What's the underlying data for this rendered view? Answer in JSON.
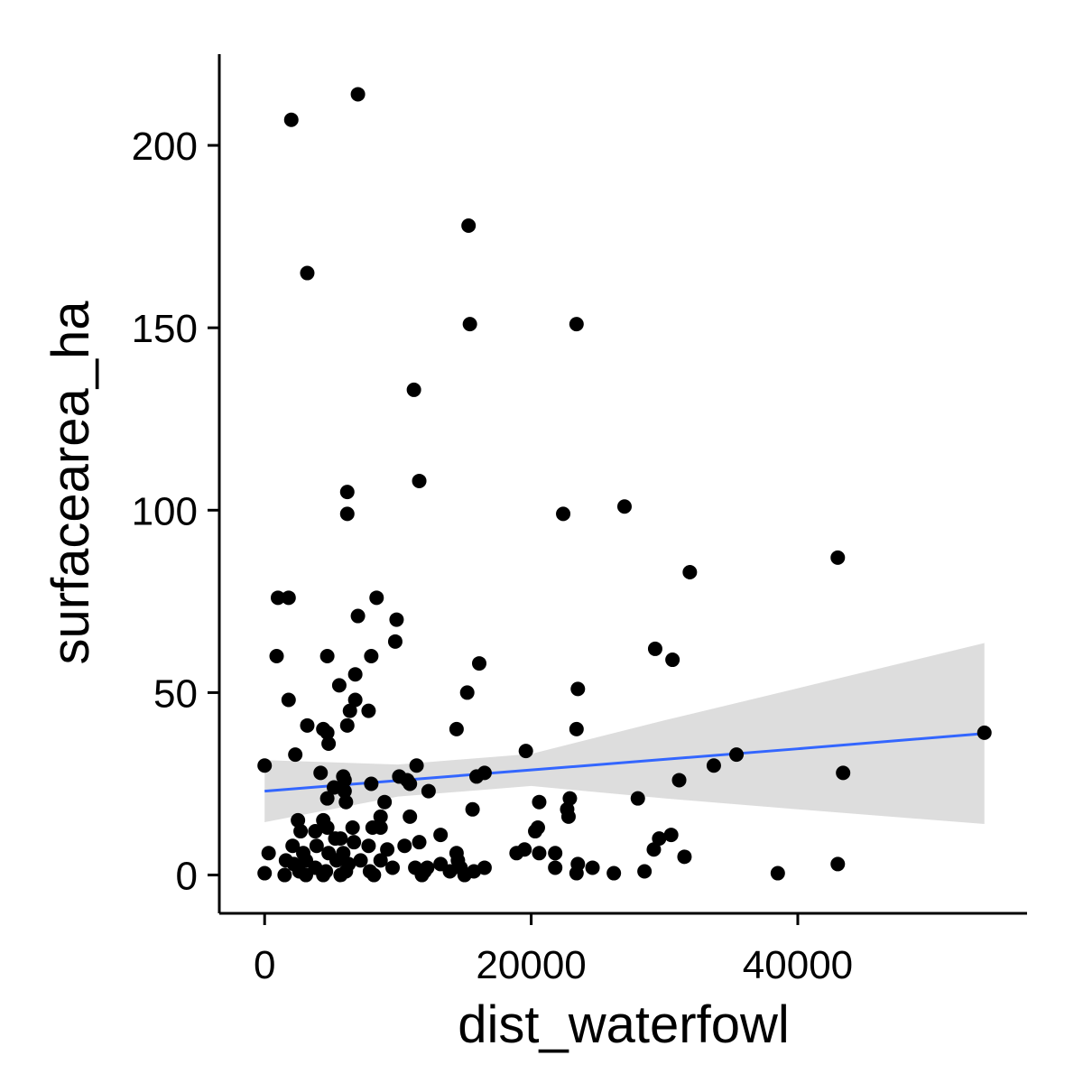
{
  "chart_data": {
    "type": "scatter",
    "xlabel": "dist_waterfowl",
    "ylabel": "surfacearea_ha",
    "xlim": [
      -3400,
      57200
    ],
    "ylim": [
      -10.5,
      225
    ],
    "x_ticks": [
      0,
      20000,
      40000
    ],
    "x_tick_labels": [
      "0",
      "20000",
      "40000"
    ],
    "y_ticks": [
      0,
      50,
      100,
      150,
      200
    ],
    "y_tick_labels": [
      "0",
      "50",
      "100",
      "150",
      "200"
    ],
    "grid": false,
    "legend": "none",
    "point_color": "#000000",
    "smooth": {
      "method": "linear",
      "line_color": "#3366FF",
      "band_color": "#D9D9D9",
      "x": [
        0,
        10000,
        20000,
        30000,
        40000,
        54000
      ],
      "fit": [
        23.0,
        25.9,
        28.8,
        31.7,
        34.6,
        38.8
      ],
      "lower": [
        14.5,
        21.5,
        24.4,
        21.0,
        18.0,
        14.0
      ],
      "upper": [
        31.5,
        30.3,
        33.2,
        42.4,
        51.2,
        63.6
      ]
    },
    "points": [
      [
        7000,
        214
      ],
      [
        2000,
        207
      ],
      [
        15300,
        178
      ],
      [
        3200,
        165
      ],
      [
        15400,
        151
      ],
      [
        23400,
        151
      ],
      [
        11200,
        133
      ],
      [
        11600,
        108
      ],
      [
        6200,
        105
      ],
      [
        6200,
        99
      ],
      [
        22400,
        99
      ],
      [
        27000,
        101
      ],
      [
        43000,
        87
      ],
      [
        31900,
        83
      ],
      [
        1000,
        76
      ],
      [
        1800,
        76
      ],
      [
        8400,
        76
      ],
      [
        7000,
        71
      ],
      [
        9900,
        70
      ],
      [
        9800,
        64
      ],
      [
        29300,
        62
      ],
      [
        30600,
        59
      ],
      [
        900,
        60
      ],
      [
        4700,
        60
      ],
      [
        8000,
        60
      ],
      [
        16100,
        58
      ],
      [
        6800,
        55
      ],
      [
        5600,
        52
      ],
      [
        15200,
        50
      ],
      [
        23500,
        51
      ],
      [
        1800,
        48
      ],
      [
        6800,
        48
      ],
      [
        6400,
        45
      ],
      [
        7800,
        45
      ],
      [
        3200,
        41
      ],
      [
        6200,
        41
      ],
      [
        14400,
        40
      ],
      [
        23400,
        40
      ],
      [
        4400,
        40
      ],
      [
        4700,
        39
      ],
      [
        54000,
        39
      ],
      [
        4800,
        36
      ],
      [
        2300,
        33
      ],
      [
        35400,
        33
      ],
      [
        19600,
        34
      ],
      [
        0,
        30
      ],
      [
        33700,
        30
      ],
      [
        11400,
        30
      ],
      [
        43400,
        28
      ],
      [
        4200,
        28
      ],
      [
        5900,
        27
      ],
      [
        6000,
        26
      ],
      [
        10100,
        27
      ],
      [
        10700,
        26
      ],
      [
        16500,
        28
      ],
      [
        15900,
        27
      ],
      [
        31100,
        26
      ],
      [
        10900,
        25
      ],
      [
        12300,
        23
      ],
      [
        8000,
        25
      ],
      [
        5200,
        24
      ],
      [
        6000,
        23
      ],
      [
        6100,
        20
      ],
      [
        4700,
        21
      ],
      [
        22900,
        21
      ],
      [
        28000,
        21
      ],
      [
        20600,
        20
      ],
      [
        9000,
        20
      ],
      [
        15600,
        18
      ],
      [
        22700,
        18
      ],
      [
        22800,
        16
      ],
      [
        8700,
        16
      ],
      [
        10900,
        16
      ],
      [
        2500,
        15
      ],
      [
        4400,
        15
      ],
      [
        4700,
        13
      ],
      [
        6600,
        13
      ],
      [
        8100,
        13
      ],
      [
        8700,
        13
      ],
      [
        3800,
        12
      ],
      [
        2700,
        12
      ],
      [
        20300,
        12
      ],
      [
        20500,
        13
      ],
      [
        13200,
        11
      ],
      [
        30500,
        11
      ],
      [
        5300,
        10
      ],
      [
        5700,
        10
      ],
      [
        6700,
        9
      ],
      [
        29600,
        10
      ],
      [
        10500,
        8
      ],
      [
        11600,
        9
      ],
      [
        3900,
        8
      ],
      [
        2100,
        8
      ],
      [
        5900,
        6
      ],
      [
        7800,
        8
      ],
      [
        9200,
        7
      ],
      [
        19500,
        7
      ],
      [
        20600,
        6
      ],
      [
        29200,
        7
      ],
      [
        14400,
        6
      ],
      [
        18900,
        6
      ],
      [
        21800,
        6
      ],
      [
        31500,
        5
      ],
      [
        300,
        6
      ],
      [
        2900,
        6
      ],
      [
        4800,
        6
      ],
      [
        1600,
        4
      ],
      [
        3100,
        4
      ],
      [
        5400,
        4
      ],
      [
        7200,
        4
      ],
      [
        8700,
        4
      ],
      [
        13200,
        3
      ],
      [
        14500,
        4
      ],
      [
        23500,
        3
      ],
      [
        43000,
        3
      ],
      [
        2200,
        3
      ],
      [
        3800,
        2
      ],
      [
        6300,
        3
      ],
      [
        9600,
        2
      ],
      [
        11300,
        2
      ],
      [
        12200,
        2
      ],
      [
        14700,
        2
      ],
      [
        16500,
        2
      ],
      [
        21800,
        2
      ],
      [
        24600,
        2
      ],
      [
        28500,
        1
      ],
      [
        2600,
        1
      ],
      [
        4600,
        1
      ],
      [
        6100,
        1
      ],
      [
        7900,
        1
      ],
      [
        12000,
        1
      ],
      [
        13900,
        1
      ],
      [
        15700,
        1
      ],
      [
        23400,
        0.5
      ],
      [
        26200,
        0.5
      ],
      [
        38500,
        0.5
      ],
      [
        0,
        0.5
      ],
      [
        1500,
        0
      ],
      [
        3100,
        0
      ],
      [
        4400,
        0
      ],
      [
        5700,
        0
      ],
      [
        8200,
        0
      ],
      [
        11800,
        0
      ],
      [
        15000,
        0
      ]
    ]
  }
}
